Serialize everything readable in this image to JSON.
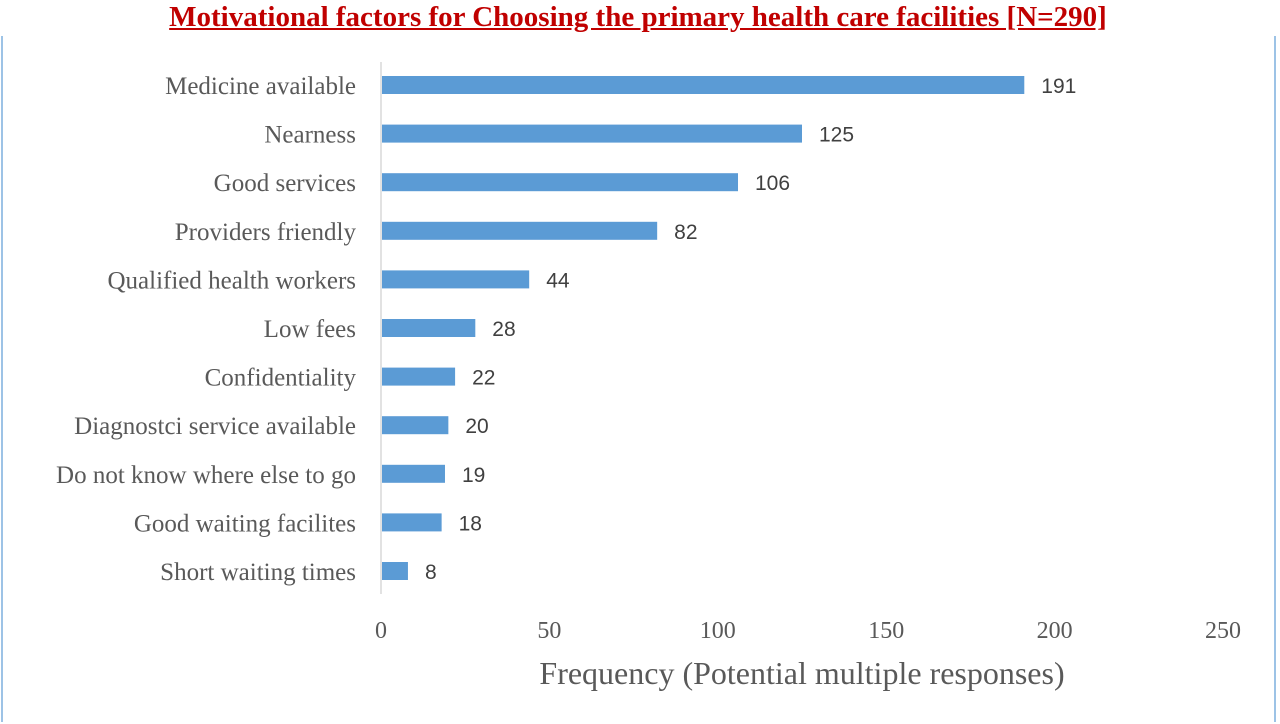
{
  "chart_data": {
    "type": "bar",
    "orientation": "horizontal",
    "title": "Motivational factors for Choosing the primary health care facilities [N=290]",
    "categories": [
      "Medicine available",
      "Nearness",
      "Good services",
      "Providers friendly",
      "Qualified health workers",
      "Low fees",
      "Confidentiality",
      "Diagnostci service available",
      "Do not know where else to go",
      "Good waiting facilites",
      "Short  waiting times"
    ],
    "values": [
      191,
      125,
      106,
      82,
      44,
      28,
      22,
      20,
      19,
      18,
      8
    ],
    "xlabel": "Frequency (Potential multiple responses)",
    "ylabel": "",
    "xlim": [
      0,
      250
    ],
    "xticks": [
      0,
      50,
      100,
      150,
      200,
      250
    ],
    "grid": false,
    "legend": "none",
    "bar_color": "#5b9bd5",
    "title_color": "#c00000"
  }
}
